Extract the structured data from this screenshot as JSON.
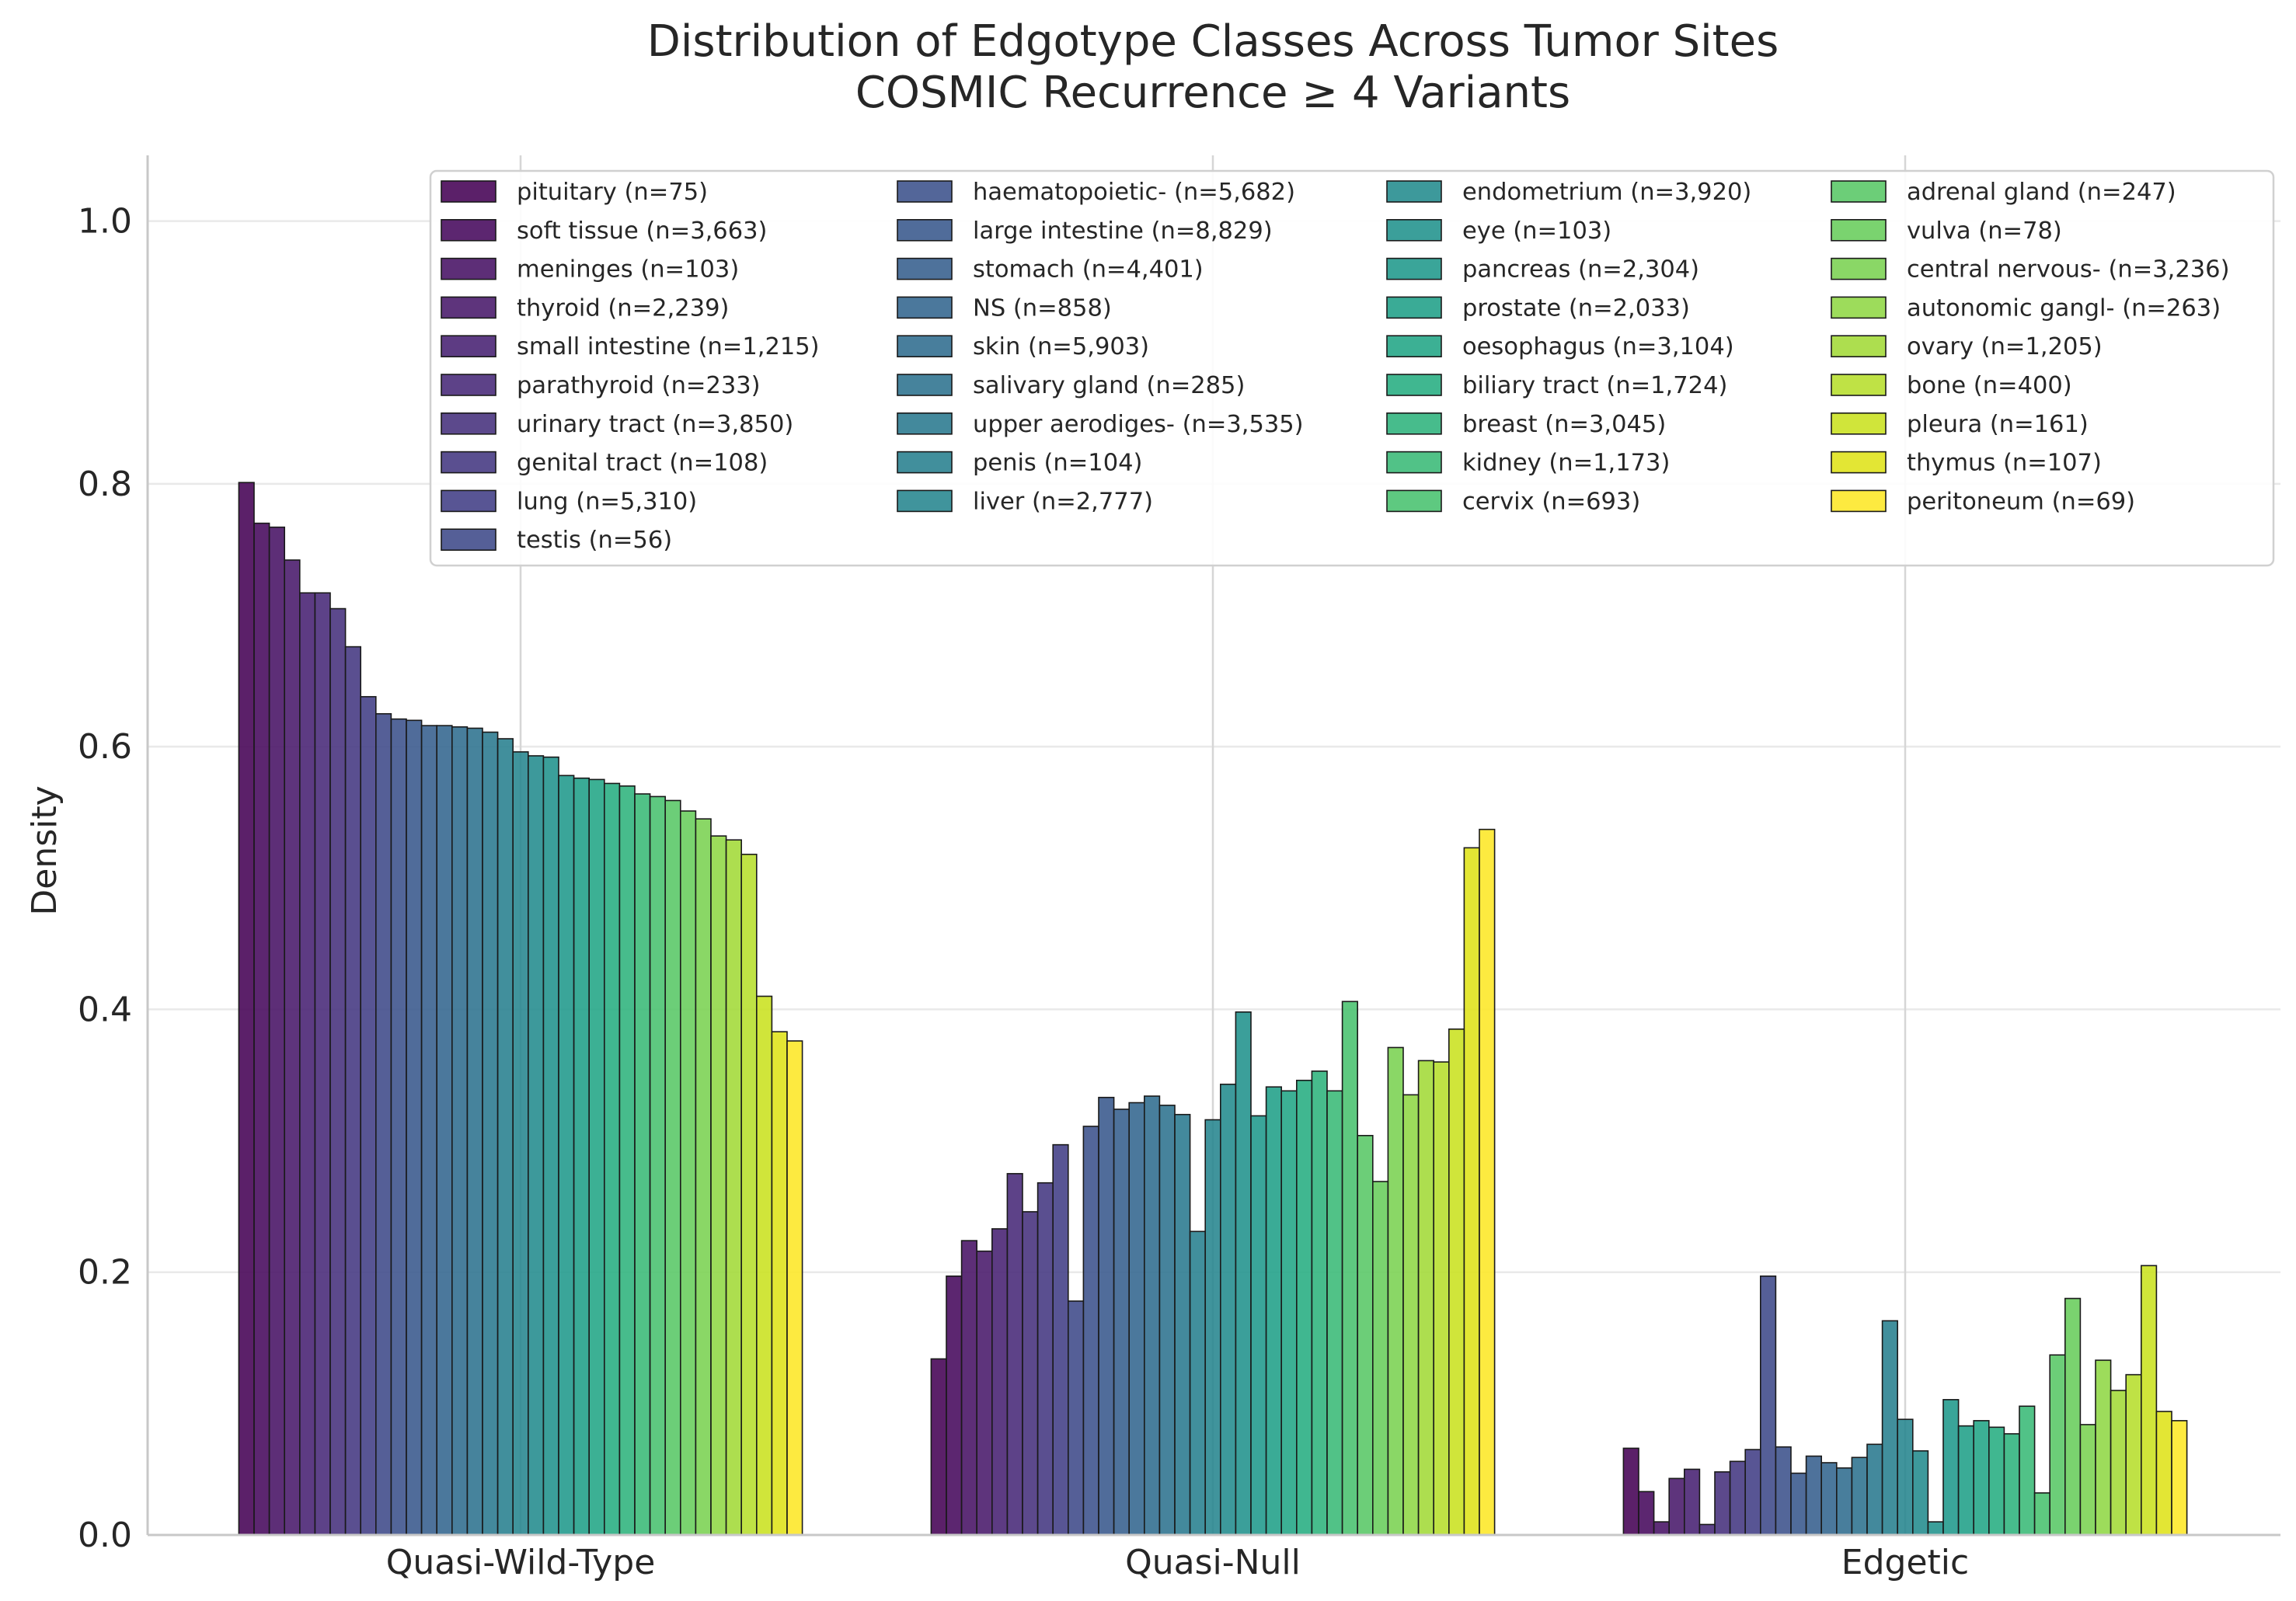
{
  "chart_data": {
    "type": "bar",
    "title": "Distribution of Edgotype Classes Across Tumor Sites",
    "subtitle": "COSMIC Recurrence ≥ 4 Variants",
    "xlabel": "",
    "ylabel": "Density",
    "ylim": [
      0,
      1.05
    ],
    "yticks": [
      "0.0",
      "0.2",
      "0.4",
      "0.6",
      "0.8",
      "1.0"
    ],
    "grid": true,
    "legend_position": "top-right",
    "categories": [
      "Quasi-Wild-Type",
      "Quasi-Null",
      "Edgetic"
    ],
    "series": [
      {
        "name": "pituitary (n=75)",
        "color": "#440154",
        "values": [
          0.801,
          0.134,
          0.066
        ]
      },
      {
        "name": "soft tissue (n=3,663)",
        "color": "#46085c",
        "values": [
          0.77,
          0.197,
          0.033
        ]
      },
      {
        "name": "meninges (n=103)",
        "color": "#471164",
        "values": [
          0.767,
          0.224,
          0.01
        ]
      },
      {
        "name": "thyroid (n=2,239)",
        "color": "#48186a",
        "values": [
          0.742,
          0.216,
          0.043
        ]
      },
      {
        "name": "small intestine (n=1,215)",
        "color": "#472072",
        "values": [
          0.717,
          0.233,
          0.05
        ]
      },
      {
        "name": "parathyroid (n=233)",
        "color": "#472877",
        "values": [
          0.717,
          0.275,
          0.008
        ]
      },
      {
        "name": "urinary tract (n=3,850)",
        "color": "#45307c",
        "values": [
          0.705,
          0.246,
          0.048
        ]
      },
      {
        "name": "genital tract (n=108)",
        "color": "#433781",
        "values": [
          0.676,
          0.268,
          0.056
        ]
      },
      {
        "name": "lung (n=5,310)",
        "color": "#413e85",
        "values": [
          0.638,
          0.297,
          0.065
        ]
      },
      {
        "name": "testis (n=56)",
        "color": "#3e4989",
        "values": [
          0.625,
          0.178,
          0.197
        ]
      },
      {
        "name": "haematopoietic- (n=5,682)",
        "color": "#3b518b",
        "values": [
          0.621,
          0.311,
          0.067
        ]
      },
      {
        "name": "large intestine (n=8,829)",
        "color": "#38588c",
        "values": [
          0.62,
          0.333,
          0.047
        ]
      },
      {
        "name": "stomach (n=4,401)",
        "color": "#355f8d",
        "values": [
          0.616,
          0.324,
          0.06
        ]
      },
      {
        "name": "NS (n=858)",
        "color": "#32658e",
        "values": [
          0.616,
          0.329,
          0.055
        ]
      },
      {
        "name": "skin (n=5,903)",
        "color": "#2f6c8e",
        "values": [
          0.615,
          0.334,
          0.051
        ]
      },
      {
        "name": "salivary gland (n=285)",
        "color": "#2c728e",
        "values": [
          0.614,
          0.327,
          0.059
        ]
      },
      {
        "name": "upper aerodiges- (n=3,535)",
        "color": "#29798e",
        "values": [
          0.611,
          0.32,
          0.069
        ]
      },
      {
        "name": "penis (n=104)",
        "color": "#277f8e",
        "values": [
          0.606,
          0.231,
          0.163
        ]
      },
      {
        "name": "liver (n=2,777)",
        "color": "#25858e",
        "values": [
          0.596,
          0.316,
          0.088
        ]
      },
      {
        "name": "endometrium (n=3,920)",
        "color": "#228b8d",
        "values": [
          0.593,
          0.343,
          0.064
        ]
      },
      {
        "name": "eye (n=103)",
        "color": "#20928c",
        "values": [
          0.592,
          0.398,
          0.01
        ]
      },
      {
        "name": "pancreas (n=2,304)",
        "color": "#1f988b",
        "values": [
          0.578,
          0.319,
          0.103
        ]
      },
      {
        "name": "prostate (n=2,033)",
        "color": "#1f9f88",
        "values": [
          0.576,
          0.341,
          0.083
        ]
      },
      {
        "name": "oesophagus (n=3,104)",
        "color": "#21a585",
        "values": [
          0.575,
          0.338,
          0.087
        ]
      },
      {
        "name": "biliary tract (n=1,724)",
        "color": "#26ad81",
        "values": [
          0.572,
          0.346,
          0.082
        ]
      },
      {
        "name": "breast (n=3,045)",
        "color": "#2eb37c",
        "values": [
          0.57,
          0.353,
          0.077
        ]
      },
      {
        "name": "kidney (n=1,173)",
        "color": "#39ba76",
        "values": [
          0.564,
          0.338,
          0.098
        ]
      },
      {
        "name": "cervix (n=693)",
        "color": "#48c16e",
        "values": [
          0.562,
          0.406,
          0.032
        ]
      },
      {
        "name": "adrenal gland (n=247)",
        "color": "#58c765",
        "values": [
          0.559,
          0.304,
          0.137
        ]
      },
      {
        "name": "vulva (n=78)",
        "color": "#68cd5b",
        "values": [
          0.551,
          0.269,
          0.18
        ]
      },
      {
        "name": "central nervous- (n=3,236)",
        "color": "#7ad151",
        "values": [
          0.545,
          0.371,
          0.084
        ]
      },
      {
        "name": "autonomic gangl- (n=263)",
        "color": "#8fd744",
        "values": [
          0.532,
          0.335,
          0.133
        ]
      },
      {
        "name": "ovary (n=1,205)",
        "color": "#a2da37",
        "values": [
          0.529,
          0.361,
          0.11
        ]
      },
      {
        "name": "bone (n=400)",
        "color": "#b6de2b",
        "values": [
          0.518,
          0.36,
          0.122
        ]
      },
      {
        "name": "pleura (n=161)",
        "color": "#cae11f",
        "values": [
          0.41,
          0.385,
          0.205
        ]
      },
      {
        "name": "thymus (n=107)",
        "color": "#dfe318",
        "values": [
          0.383,
          0.523,
          0.094
        ]
      },
      {
        "name": "peritoneum (n=69)",
        "color": "#fde725",
        "values": [
          0.376,
          0.537,
          0.087
        ]
      }
    ]
  }
}
